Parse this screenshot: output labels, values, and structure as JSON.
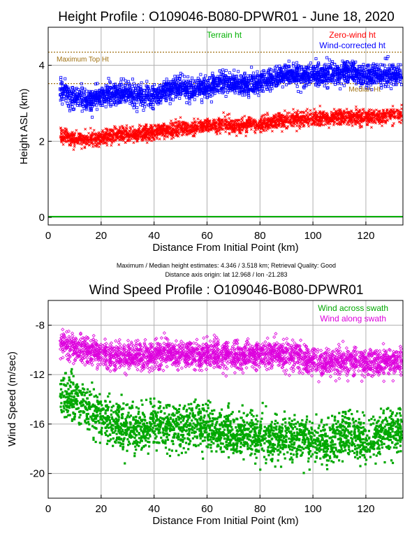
{
  "info": {
    "line1": "Maximum / Median height estimates:  4.346 /  3.518 km;     Retrieval Quality: Good",
    "line2": "Distance axis origin: lat  12.968 / lon  -21.283"
  },
  "colors": {
    "terrain": "#00b000",
    "zero_wind": "#ff0000",
    "wind_corrected": "#0000ff",
    "across": "#00a800",
    "along": "#dd00dd",
    "ref_line": "#a07010",
    "grid": "#b0b0b0"
  },
  "chart_data": [
    {
      "type": "scatter",
      "title": "Height Profile : O109046-B080-DPWR01 - June 18, 2020",
      "xlabel": "Distance From Initial Point (km)",
      "ylabel": "Height ASL (km)",
      "xlim": [
        0,
        134
      ],
      "ylim": [
        -0.2,
        5.0
      ],
      "xticks": [
        0,
        20,
        40,
        60,
        80,
        100,
        120
      ],
      "yticks": [
        0,
        2,
        4
      ],
      "grid": true,
      "legend_position": "top-right",
      "reference_lines": [
        {
          "name": "Maximum Top Ht",
          "value": 4.346
        },
        {
          "name": "Median Ht",
          "value": 3.518
        }
      ],
      "series": [
        {
          "name": "Terrain ht",
          "marker": "line",
          "x": [
            0,
            134
          ],
          "y": [
            0.02,
            0.02
          ]
        },
        {
          "name": "Zero-wind ht",
          "marker": "x",
          "x": [
            5,
            10,
            15,
            20,
            25,
            30,
            35,
            40,
            45,
            50,
            55,
            60,
            65,
            70,
            75,
            80,
            85,
            90,
            95,
            100,
            105,
            110,
            115,
            120,
            125,
            130
          ],
          "y": [
            2.15,
            2.05,
            2.05,
            2.1,
            2.15,
            2.2,
            2.2,
            2.25,
            2.3,
            2.35,
            2.35,
            2.4,
            2.45,
            2.4,
            2.45,
            2.45,
            2.5,
            2.55,
            2.6,
            2.6,
            2.6,
            2.65,
            2.65,
            2.6,
            2.65,
            2.7
          ]
        },
        {
          "name": "Wind-corrected ht",
          "marker": "square",
          "x": [
            5,
            10,
            15,
            20,
            25,
            30,
            35,
            40,
            45,
            50,
            55,
            60,
            65,
            70,
            75,
            80,
            85,
            90,
            95,
            100,
            105,
            110,
            115,
            120,
            125,
            130
          ],
          "y": [
            3.3,
            3.15,
            3.1,
            3.2,
            3.25,
            3.3,
            3.2,
            3.2,
            3.35,
            3.4,
            3.35,
            3.4,
            3.55,
            3.5,
            3.45,
            3.55,
            3.65,
            3.75,
            3.7,
            3.75,
            3.75,
            3.8,
            3.85,
            3.7,
            3.75,
            3.75
          ]
        }
      ]
    },
    {
      "type": "scatter",
      "title": "Wind Speed Profile : O109046-B080-DPWR01",
      "xlabel": "Distance From Initial Point (km)",
      "ylabel": "Wind Speed (m/sec)",
      "xlim": [
        0,
        134
      ],
      "ylim": [
        -22,
        -6
      ],
      "xticks": [
        0,
        20,
        40,
        60,
        80,
        100,
        120
      ],
      "yticks": [
        -8,
        -12,
        -16,
        -20
      ],
      "grid": true,
      "legend_position": "top-right",
      "series": [
        {
          "name": "Wind across swath",
          "marker": "square",
          "x": [
            5,
            10,
            15,
            20,
            25,
            30,
            35,
            40,
            45,
            50,
            55,
            60,
            65,
            70,
            75,
            80,
            85,
            90,
            95,
            100,
            105,
            110,
            115,
            120,
            125,
            130
          ],
          "y": [
            -13.5,
            -14.0,
            -14.5,
            -15.5,
            -16.0,
            -16.5,
            -16.5,
            -16.0,
            -16.0,
            -16.5,
            -16.0,
            -16.5,
            -16.5,
            -17.0,
            -17.0,
            -17.0,
            -17.5,
            -17.0,
            -17.0,
            -17.5,
            -17.5,
            -17.0,
            -17.0,
            -17.5,
            -17.0,
            -16.5
          ]
        },
        {
          "name": "Wind along swath",
          "marker": "diamond",
          "x": [
            5,
            10,
            15,
            20,
            25,
            30,
            35,
            40,
            45,
            50,
            55,
            60,
            65,
            70,
            75,
            80,
            85,
            90,
            95,
            100,
            105,
            110,
            115,
            120,
            125,
            130
          ],
          "y": [
            -9.5,
            -9.8,
            -10.0,
            -10.2,
            -10.5,
            -10.5,
            -10.4,
            -10.5,
            -10.3,
            -10.4,
            -10.4,
            -10.5,
            -10.3,
            -10.4,
            -10.5,
            -10.4,
            -10.3,
            -10.4,
            -10.6,
            -10.8,
            -11.0,
            -11.0,
            -10.9,
            -11.0,
            -11.0,
            -11.0
          ]
        }
      ]
    }
  ]
}
